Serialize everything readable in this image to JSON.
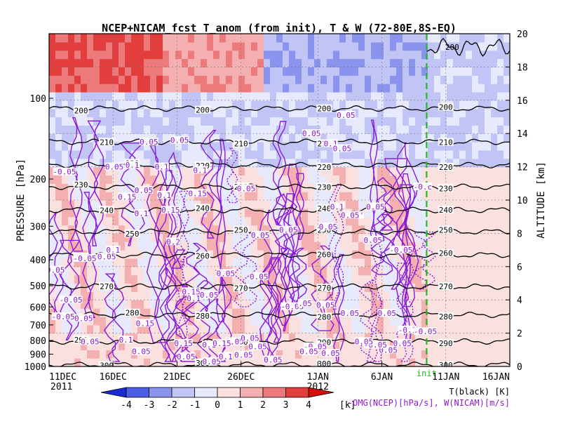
{
  "chart_data": {
    "type": "heatmap",
    "title": "NCEP+NICAM_fcst T_anom (from init), T & W  (72-80E,8S-EQ)",
    "ylabel_left": "PRESSURE [hPa]",
    "ylabel_right": "ALTITUDE [km]",
    "pressure_ticks": [
      100,
      200,
      300,
      400,
      500,
      600,
      700,
      800,
      900,
      1000
    ],
    "altitude_ticks": [
      0,
      2,
      4,
      6,
      8,
      10,
      12,
      14,
      16,
      18,
      20
    ],
    "ylim_km": [
      0,
      20
    ],
    "x_ticks": [
      {
        "label": "11DEC",
        "day": 0
      },
      {
        "label": "16DEC",
        "day": 5
      },
      {
        "label": "21DEC",
        "day": 10
      },
      {
        "label": "26DEC",
        "day": 15
      },
      {
        "label": "1JAN",
        "day": 21
      },
      {
        "label": "6JAN",
        "day": 26
      },
      {
        "label": "11JAN",
        "day": 31
      },
      {
        "label": "16JAN",
        "day": 36
      }
    ],
    "x_year_labels": [
      {
        "label": "2011",
        "day": 0
      },
      {
        "label": "2012",
        "day": 21
      }
    ],
    "xlim_days": [
      0,
      36
    ],
    "init": {
      "label": "init",
      "day": 29.5,
      "color": "#22bb22"
    },
    "temperature_contours": [
      {
        "value": 200,
        "km": 15.5
      },
      {
        "value": 210,
        "km": 13.5
      },
      {
        "value": 220,
        "km": 12.1
      },
      {
        "value": 230,
        "km": 10.8
      },
      {
        "value": 240,
        "km": 9.4
      },
      {
        "value": 250,
        "km": 8.1
      },
      {
        "value": 260,
        "km": 6.7
      },
      {
        "value": 270,
        "km": 4.8
      },
      {
        "value": 280,
        "km": 3.1
      },
      {
        "value": 290,
        "km": 1.5
      },
      {
        "value": 300,
        "km": 0.1
      }
    ],
    "tropopause_label": {
      "value": 200,
      "day": 31.5,
      "km": 19.2
    },
    "w_labels": [
      {
        "text": "0.05",
        "day": 23.2,
        "km": 15.1
      },
      {
        "text": "0.05",
        "day": 20.5,
        "km": 14.0
      },
      {
        "text": "0.1",
        "day": 22.0,
        "km": 13.4
      },
      {
        "text": "0.05",
        "day": 22.9,
        "km": 13.1
      },
      {
        "text": "0.05",
        "day": 7.8,
        "km": 13.5
      },
      {
        "text": "0.05",
        "day": 10.2,
        "km": 13.6
      },
      {
        "text": "0.1",
        "day": 6.5,
        "km": 12.1
      },
      {
        "text": "0.1",
        "day": 8.8,
        "km": 12.0
      },
      {
        "text": "0.1",
        "day": 11.8,
        "km": 11.8
      },
      {
        "text": "-0.05",
        "day": 1.2,
        "km": 11.7
      },
      {
        "text": "0.05",
        "day": 5.1,
        "km": 12.0
      },
      {
        "text": "0.15",
        "day": 6.1,
        "km": 10.2
      },
      {
        "text": "0.05",
        "day": 7.4,
        "km": 10.6
      },
      {
        "text": "0.1",
        "day": 9.0,
        "km": 10.3
      },
      {
        "text": "0.15",
        "day": 11.6,
        "km": 10.4
      },
      {
        "text": "0.05",
        "day": 15.4,
        "km": 10.7
      },
      {
        "text": "0.1",
        "day": 7.2,
        "km": 9.2
      },
      {
        "text": "0.15",
        "day": 9.5,
        "km": 9.4
      },
      {
        "text": "0.1",
        "day": 22.5,
        "km": 9.6
      },
      {
        "text": "0.05'",
        "day": 23.7,
        "km": 9.1
      },
      {
        "text": "0.05",
        "day": 25.5,
        "km": 9.6
      },
      {
        "text": "0.05",
        "day": 16.5,
        "km": 7.9
      },
      {
        "text": "0.05",
        "day": 18.7,
        "km": 8.2
      },
      {
        "text": "0.05",
        "day": 21.8,
        "km": 8.4
      },
      {
        "text": "0.05",
        "day": 25.3,
        "km": 7.6
      },
      {
        "text": "0.2",
        "day": 9.7,
        "km": 7.5
      },
      {
        "text": "0.1",
        "day": 5.0,
        "km": 7.0
      },
      {
        "text": "0.05",
        "day": 4.5,
        "km": 6.6
      },
      {
        "text": "-0.05",
        "day": 2.8,
        "km": 6.5
      },
      {
        "text": "-0.05",
        "day": 27.5,
        "km": 7.0
      },
      {
        "text": "0.05",
        "day": 0.5,
        "km": 5.8
      },
      {
        "text": "0.05",
        "day": 13.8,
        "km": 5.6
      },
      {
        "text": "0.05",
        "day": 16.4,
        "km": 5.4
      },
      {
        "text": "0.1",
        "day": 11.3,
        "km": 4.1
      },
      {
        "text": "0.15",
        "day": 11.1,
        "km": 4.5
      },
      {
        "text": "0.05",
        "day": 12.5,
        "km": 4.3
      },
      {
        "text": "-0.05",
        "day": 1.7,
        "km": 4.0
      },
      {
        "text": "-0.05",
        "day": 1.1,
        "km": 3.0
      },
      {
        "text": "0.05",
        "day": 2.7,
        "km": 2.9
      },
      {
        "text": "-0.05",
        "day": 19.0,
        "km": 3.6
      },
      {
        "text": ".05",
        "day": 20.0,
        "km": 3.8
      },
      {
        "text": "0.05",
        "day": 21.6,
        "km": 3.7
      },
      {
        "text": "0.05",
        "day": 23.5,
        "km": 3.2
      },
      {
        "text": "0.05",
        "day": 26.4,
        "km": 3.2
      },
      {
        "text": "0.15",
        "day": 7.5,
        "km": 2.6
      },
      {
        "text": "-0.1",
        "day": 28.0,
        "km": 2.2
      },
      {
        "text": "-0.05",
        "day": 29.4,
        "km": 2.1
      },
      {
        "text": "0.05",
        "day": 14.5,
        "km": 1.5
      },
      {
        "text": "0.05",
        "day": 15.7,
        "km": 1.7
      },
      {
        "text": "0.05",
        "day": 3.2,
        "km": 1.5
      },
      {
        "text": "0.1",
        "day": 6.0,
        "km": 1.6
      },
      {
        "text": "0.15",
        "day": 10.5,
        "km": 1.4
      },
      {
        "text": "0.1",
        "day": 12.5,
        "km": 1.3
      },
      {
        "text": "0.15",
        "day": 13.5,
        "km": 1.4
      },
      {
        "text": "0.05",
        "day": 16.3,
        "km": 1.2
      },
      {
        "text": "0.05",
        "day": 7.2,
        "km": 0.9
      },
      {
        "text": "0.05",
        "day": 10.7,
        "km": 0.6
      },
      {
        "text": "0.05",
        "day": 12.7,
        "km": 0.3
      },
      {
        "text": "0.1",
        "day": 13.8,
        "km": 0.6
      },
      {
        "text": "0.05",
        "day": 15.2,
        "km": 0.7
      },
      {
        "text": "0.05",
        "day": 22.0,
        "km": 0.8
      },
      {
        "text": "0.05",
        "day": 26.5,
        "km": 1.0
      },
      {
        "text": "0.05",
        "day": 27.6,
        "km": 1.4
      },
      {
        "text": "-0.05",
        "day": 20.8,
        "km": 1.2
      },
      {
        "text": "-0.05",
        "day": 25.5,
        "km": 1.3
      },
      {
        "text": "0.05",
        "day": 24.6,
        "km": 1.5
      },
      {
        "text": "0.05",
        "day": 17.5,
        "km": 0.4
      },
      {
        "text": "-0.c",
        "day": 29.2,
        "km": 10.8
      },
      {
        "text": "0.05",
        "day": 20.3,
        "km": 0.9
      }
    ],
    "colorbar": {
      "ticks": [
        -4,
        -3,
        -2,
        -1,
        0,
        1,
        2,
        3,
        4
      ],
      "unit": "[k]",
      "colors": [
        "#1a2bd6",
        "#4d5ee6",
        "#8a93ee",
        "#c1c5f5",
        "#e7e9fc",
        "#fbe0e0",
        "#f4b0b0",
        "#ec7a7a",
        "#e23e3e",
        "#d50a0a"
      ]
    },
    "legend": {
      "line1": "T(black) [K]",
      "line2": "-OMG(NCEP)[hPa/s], W(NICAM)[m/s]",
      "t_color": "#000000",
      "w_color": "#8a1ad6"
    }
  }
}
